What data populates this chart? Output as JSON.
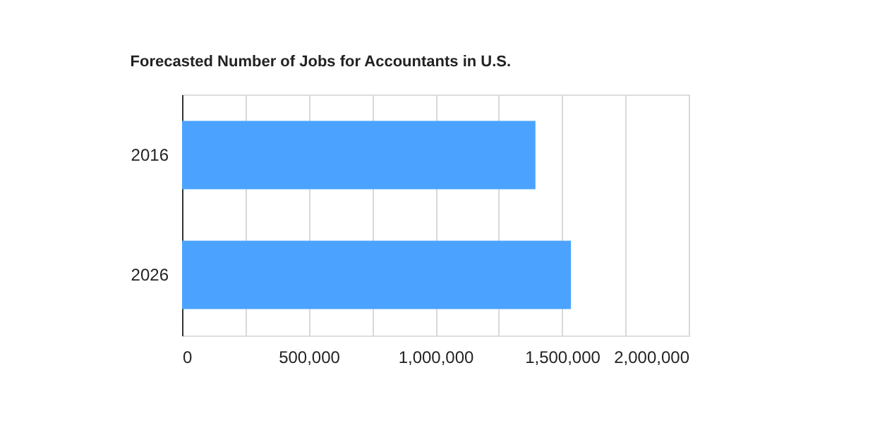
{
  "chart_data": {
    "type": "bar",
    "orientation": "horizontal",
    "title": "Forecasted Number of Jobs for Accountants in U.S.",
    "categories": [
      "2016",
      "2026"
    ],
    "values": [
      1395000,
      1535000
    ],
    "color": "#4ca3ff",
    "xlim": [
      0,
      2000000
    ],
    "xticks": [
      0,
      {
        "value": 250000,
        "label": null
      },
      {
        "value": 500000,
        "label": "500,000"
      },
      {
        "value": 750000,
        "label": null
      },
      {
        "value": 1000000,
        "label": "1,000,000"
      },
      {
        "value": 1250000,
        "label": null
      },
      {
        "value": 1500000,
        "label": "1,500,000"
      },
      {
        "value": 1750000,
        "label": null
      },
      {
        "value": 2000000,
        "label": "2,000,000"
      }
    ],
    "grid": "x"
  }
}
